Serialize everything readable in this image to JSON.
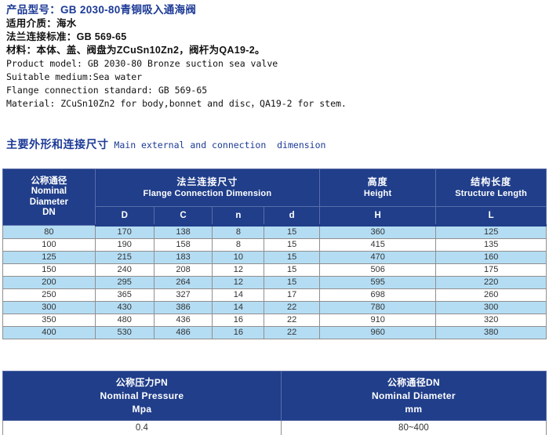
{
  "header": {
    "title_cn": "产品型号：GB 2030-80青铜吸入通海阀",
    "cn_lines": [
      "适用介质：海水",
      "法兰连接标准：GB 569-65",
      "材料：本体、盖、阀盘为ZCuSn10Zn2，阀杆为QA19-2。"
    ],
    "en_lines": [
      "Product model: GB 2030-80 Bronze suction sea valve",
      "Suitable medium:Sea water",
      "Flange connection standard: GB 569-65",
      "Material: ZCuSn10Zn2 for body,bonnet and disc，QA19-2 for stem."
    ]
  },
  "section": {
    "title_cn": "主要外形和连接尺寸",
    "title_en": " Main external and connection  dimension"
  },
  "dimension_table": {
    "nominal_diameter": {
      "cn": "公称通径",
      "en_line1": "Nominal",
      "en_line2": "Diameter",
      "sub": "DN"
    },
    "flange": {
      "cn": "法兰连接尺寸",
      "en": "Flange Connection Dimension",
      "subs": [
        "D",
        "C",
        "n",
        "d"
      ]
    },
    "height": {
      "cn": "高度",
      "en": "Height",
      "sub": "H"
    },
    "structure_length": {
      "cn": "结构长度",
      "en": "Structure Length",
      "sub": "L"
    },
    "rows": [
      [
        "80",
        "170",
        "138",
        "8",
        "15",
        "360",
        "125"
      ],
      [
        "100",
        "190",
        "158",
        "8",
        "15",
        "415",
        "135"
      ],
      [
        "125",
        "215",
        "183",
        "10",
        "15",
        "470",
        "160"
      ],
      [
        "150",
        "240",
        "208",
        "12",
        "15",
        "506",
        "175"
      ],
      [
        "200",
        "295",
        "264",
        "12",
        "15",
        "595",
        "220"
      ],
      [
        "250",
        "365",
        "327",
        "14",
        "17",
        "698",
        "260"
      ],
      [
        "300",
        "430",
        "386",
        "14",
        "22",
        "780",
        "300"
      ],
      [
        "350",
        "480",
        "436",
        "16",
        "22",
        "910",
        "320"
      ],
      [
        "400",
        "530",
        "486",
        "16",
        "22",
        "960",
        "380"
      ]
    ]
  },
  "pressure_table": {
    "pn": {
      "cn": "公称压力PN",
      "en": "Nominal Pressure",
      "unit": "Mpa",
      "value": "0.4"
    },
    "dn": {
      "cn": "公称通径DN",
      "en": "Nominal Diameter",
      "unit": "mm",
      "value": "80~400"
    }
  },
  "colors": {
    "navy": "#203e8a",
    "row_blue": "#b4ddf4",
    "title_blue": "#1c3a96"
  }
}
